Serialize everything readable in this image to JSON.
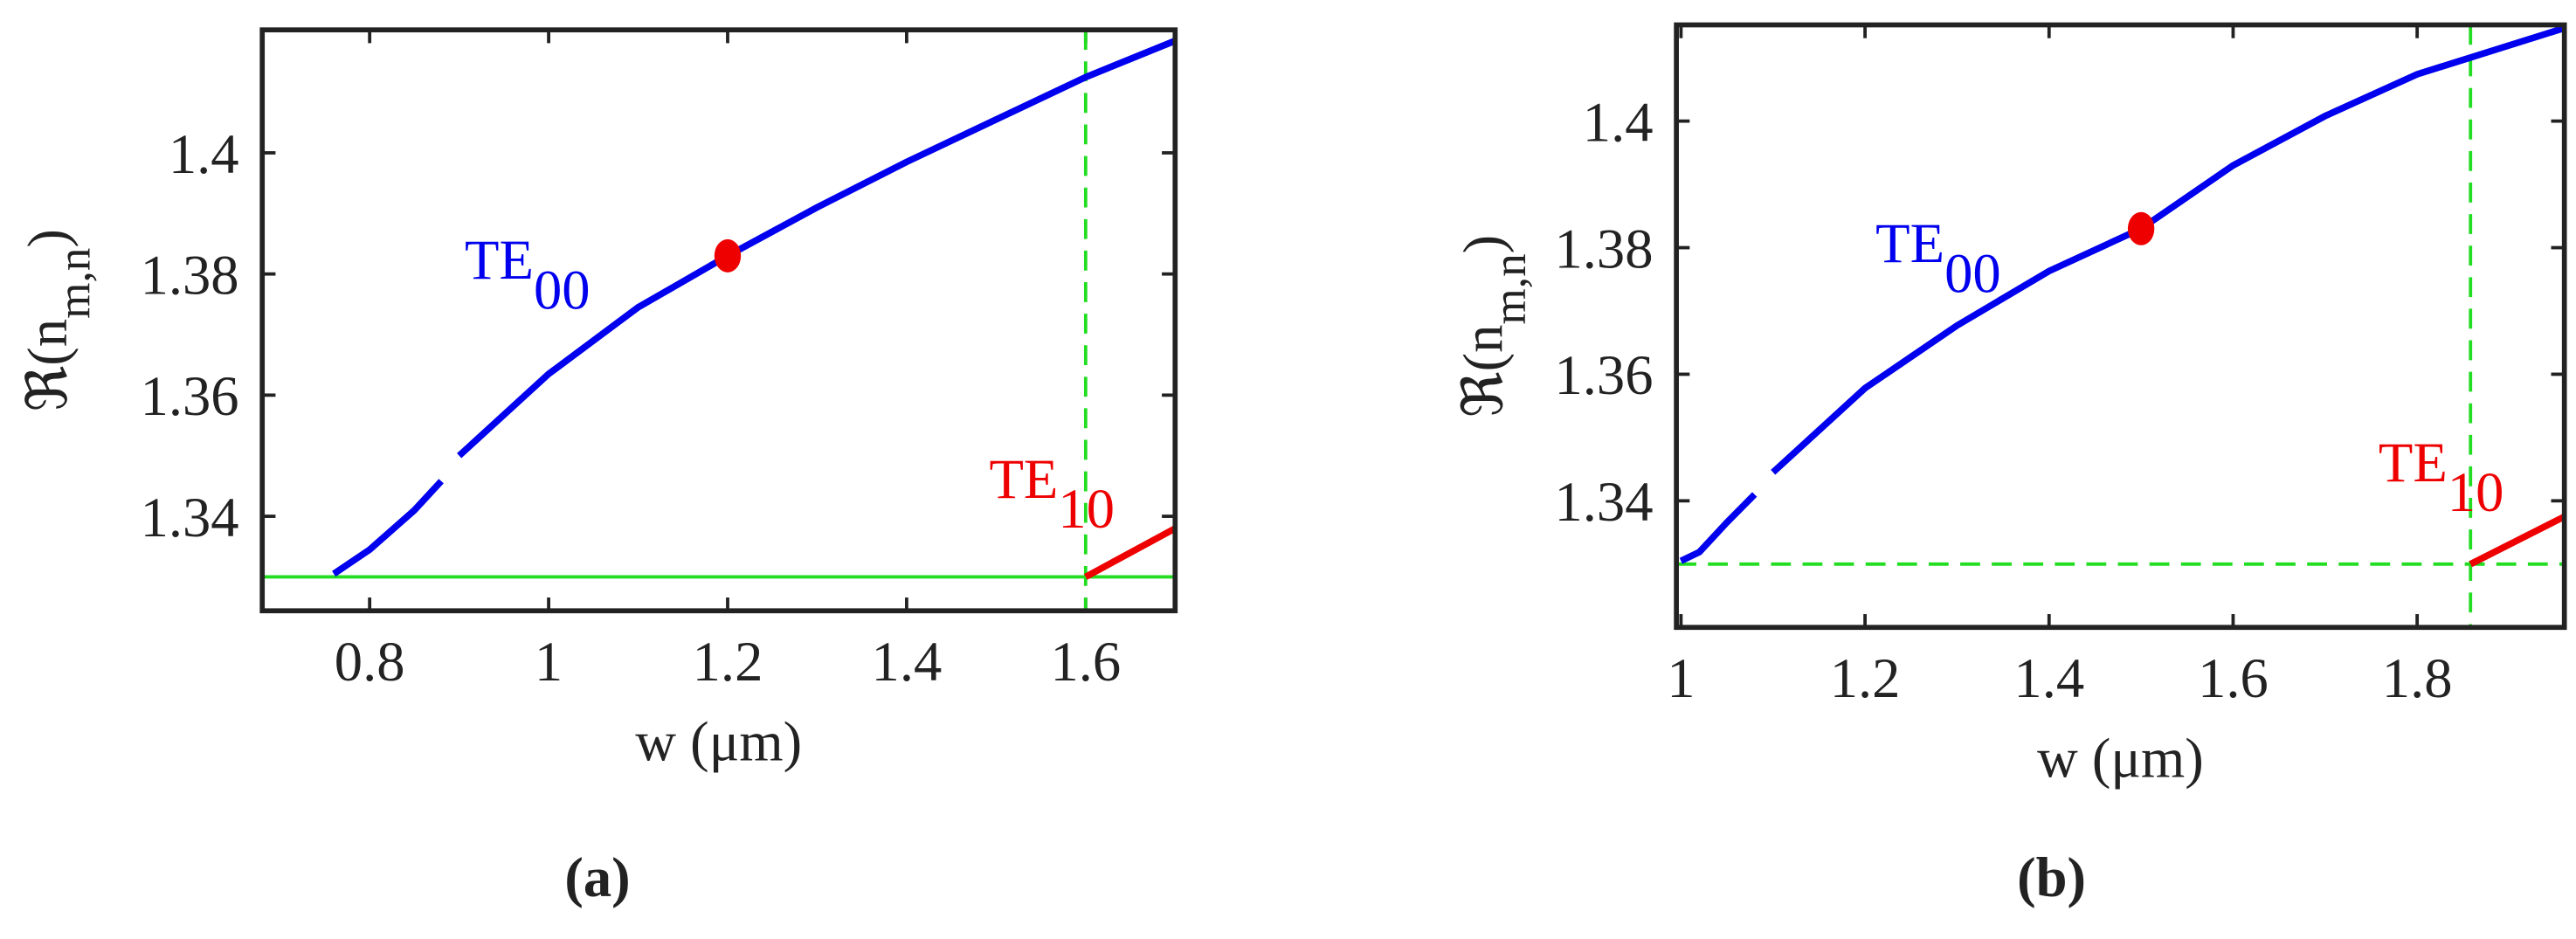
{
  "chart_data": [
    {
      "type": "line",
      "panel_label": "(a)",
      "xlabel": "w (μm)",
      "ylabel": {
        "text": "ℜ(n",
        "sub": "m,n",
        "close": ")"
      },
      "xlim": [
        0.68,
        1.7
      ],
      "ylim": [
        1.3244,
        1.4203
      ],
      "xticks": [
        0.8,
        1,
        1.2,
        1.4,
        1.6
      ],
      "yticks": [
        1.34,
        1.36,
        1.38,
        1.4
      ],
      "series": [
        {
          "color": "#0000ee",
          "x": [
            0.76,
            0.8,
            0.85,
            0.88,
            0.89,
            0.9,
            1.0,
            1.1,
            1.2,
            1.3,
            1.4,
            1.5,
            1.6,
            1.7
          ],
          "values": [
            1.3305,
            1.3345,
            1.341,
            1.3458,
            null,
            1.35,
            1.3635,
            1.3745,
            1.383,
            1.391,
            1.3985,
            1.4055,
            1.4125,
            1.4185
          ]
        },
        {
          "color": "#ee0000",
          "x": [
            1.6,
            1.7
          ],
          "values": [
            1.33,
            1.338
          ]
        }
      ],
      "points": {
        "color": "#ee0000",
        "x": [
          1.2
        ],
        "values": [
          1.383
        ]
      },
      "hline": {
        "y": 1.33,
        "color": "#22dd22",
        "style": "solid"
      },
      "vline": {
        "x": 1.6,
        "color": "#22dd22",
        "style": "dashed"
      },
      "annotations": [
        {
          "text": "TE",
          "sub": "00",
          "color": "#0000ee"
        },
        {
          "text": "TE",
          "sub": "10",
          "color": "#ee0000"
        }
      ]
    },
    {
      "type": "line",
      "panel_label": "(b)",
      "xlabel": "w (μm)",
      "ylabel": {
        "text": "ℜ(n",
        "sub": "m,n",
        "close": ")"
      },
      "xlim": [
        0.995,
        1.96
      ],
      "ylim": [
        1.32,
        1.4152
      ],
      "xticks": [
        1,
        1.2,
        1.4,
        1.6,
        1.8
      ],
      "yticks": [
        1.34,
        1.36,
        1.38,
        1.4
      ],
      "series": [
        {
          "color": "#0000ee",
          "x": [
            1.0,
            1.02,
            1.05,
            1.08,
            1.09,
            1.1,
            1.2,
            1.3,
            1.4,
            1.5,
            1.6,
            1.7,
            1.8,
            1.96
          ],
          "values": [
            1.3305,
            1.3319,
            1.3366,
            1.341,
            null,
            1.3445,
            1.3578,
            1.3677,
            1.3763,
            1.383,
            1.393,
            1.4008,
            1.4074,
            1.4147
          ]
        },
        {
          "color": "#ee0000",
          "x": [
            1.858,
            1.96
          ],
          "values": [
            1.33,
            1.3375
          ]
        }
      ],
      "points": {
        "color": "#ee0000",
        "x": [
          1.5
        ],
        "values": [
          1.383
        ]
      },
      "hline": {
        "y": 1.33,
        "color": "#22dd22",
        "style": "dashed"
      },
      "vline": {
        "x": 1.858,
        "color": "#22dd22",
        "style": "dashed"
      },
      "annotations": [
        {
          "text": "TE",
          "sub": "00",
          "color": "#0000ee"
        },
        {
          "text": "TE",
          "sub": "10",
          "color": "#ee0000"
        }
      ]
    }
  ]
}
